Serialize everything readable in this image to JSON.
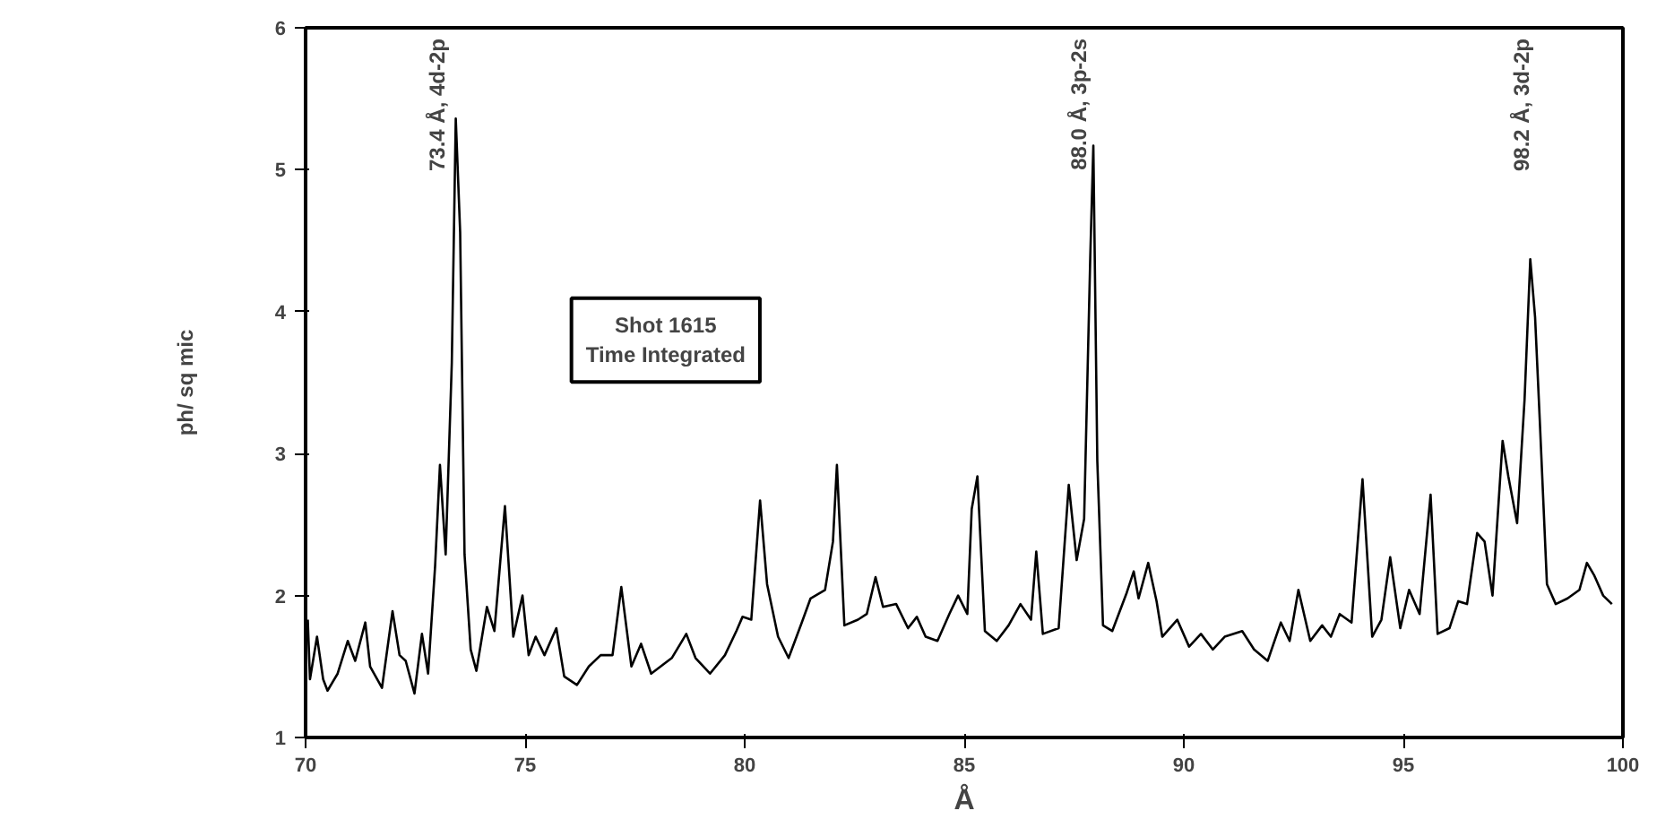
{
  "chart_data": {
    "type": "line",
    "xlabel": "Å",
    "ylabel": "ph/ sq mic",
    "xlim": [
      70,
      100
    ],
    "xticks": [
      70,
      75,
      80,
      85,
      90,
      95,
      100
    ],
    "ylim": [
      1,
      6
    ],
    "yticks": [
      1,
      2,
      3,
      4,
      5,
      6
    ],
    "grid": false,
    "marker": "none",
    "line_style": "solid",
    "series": [
      {
        "color": "#000000",
        "x": [
          70.05,
          70.1,
          70.26,
          70.4,
          70.5,
          70.73,
          70.96,
          71.13,
          71.36,
          71.47,
          71.74,
          71.98,
          72.14,
          72.28,
          72.48,
          72.65,
          72.79,
          72.95,
          73.06,
          73.19,
          73.33,
          73.42,
          73.52,
          73.62,
          73.76,
          73.89,
          74.13,
          74.3,
          74.54,
          74.73,
          74.94,
          75.08,
          75.24,
          75.44,
          75.71,
          75.89,
          76.18,
          76.45,
          76.72,
          76.99,
          77.19,
          77.42,
          77.64,
          77.87,
          78.34,
          78.67,
          78.88,
          79.21,
          79.55,
          79.81,
          79.95,
          80.15,
          80.35,
          80.51,
          80.76,
          81.0,
          81.3,
          81.5,
          81.83,
          82.01,
          82.1,
          82.27,
          82.58,
          82.78,
          82.98,
          83.15,
          83.45,
          83.72,
          83.92,
          84.12,
          84.39,
          84.66,
          84.86,
          85.07,
          85.17,
          85.3,
          85.47,
          85.74,
          86.01,
          86.28,
          86.52,
          86.64,
          86.79,
          87.15,
          87.38,
          87.56,
          87.73,
          87.87,
          87.94,
          88.03,
          88.16,
          88.37,
          88.7,
          88.86,
          88.97,
          89.19,
          89.38,
          89.51,
          89.85,
          90.12,
          90.39,
          90.66,
          90.93,
          91.33,
          91.6,
          91.91,
          92.21,
          92.41,
          92.61,
          92.88,
          93.15,
          93.35,
          93.55,
          93.82,
          94.07,
          94.29,
          94.5,
          94.7,
          94.93,
          95.13,
          95.37,
          95.62,
          95.78,
          96.05,
          96.25,
          96.45,
          96.68,
          96.85,
          97.03,
          97.26,
          97.39,
          97.59,
          97.76,
          97.89,
          98.0,
          98.11,
          98.27,
          98.47,
          98.74,
          99.01,
          99.18,
          99.35,
          99.55,
          99.75
        ],
        "values": [
          1.83,
          1.41,
          1.71,
          1.41,
          1.33,
          1.45,
          1.68,
          1.54,
          1.81,
          1.5,
          1.35,
          1.89,
          1.58,
          1.54,
          1.31,
          1.73,
          1.45,
          2.21,
          2.92,
          2.29,
          3.64,
          5.36,
          4.56,
          2.29,
          1.62,
          1.47,
          1.92,
          1.75,
          2.63,
          1.71,
          2.0,
          1.58,
          1.71,
          1.58,
          1.77,
          1.43,
          1.37,
          1.5,
          1.58,
          1.58,
          2.06,
          1.5,
          1.66,
          1.45,
          1.56,
          1.73,
          1.56,
          1.45,
          1.58,
          1.75,
          1.85,
          1.83,
          2.67,
          2.08,
          1.71,
          1.56,
          1.81,
          1.98,
          2.04,
          2.38,
          2.92,
          1.79,
          1.83,
          1.87,
          2.13,
          1.92,
          1.94,
          1.77,
          1.85,
          1.71,
          1.68,
          1.87,
          2.0,
          1.87,
          2.61,
          2.84,
          1.75,
          1.68,
          1.79,
          1.94,
          1.83,
          2.31,
          1.73,
          1.77,
          2.78,
          2.25,
          2.54,
          4.39,
          5.17,
          2.95,
          1.79,
          1.75,
          2.02,
          2.17,
          1.98,
          2.23,
          1.96,
          1.71,
          1.83,
          1.64,
          1.73,
          1.62,
          1.71,
          1.75,
          1.62,
          1.54,
          1.81,
          1.68,
          2.04,
          1.68,
          1.79,
          1.71,
          1.87,
          1.81,
          2.82,
          1.71,
          1.83,
          2.27,
          1.77,
          2.04,
          1.87,
          2.71,
          1.73,
          1.77,
          1.96,
          1.94,
          2.44,
          2.38,
          2.0,
          3.09,
          2.84,
          2.51,
          3.38,
          4.37,
          3.96,
          3.21,
          2.08,
          1.94,
          1.98,
          2.04,
          2.23,
          2.14,
          2.0,
          1.94
        ]
      }
    ],
    "annotations": [
      "73.4 Å, 4d-2p",
      "88.0 Å, 3p-2s",
      "98.2 Å, 3d-2p",
      "Shot 1615\nTime Integrated"
    ]
  }
}
